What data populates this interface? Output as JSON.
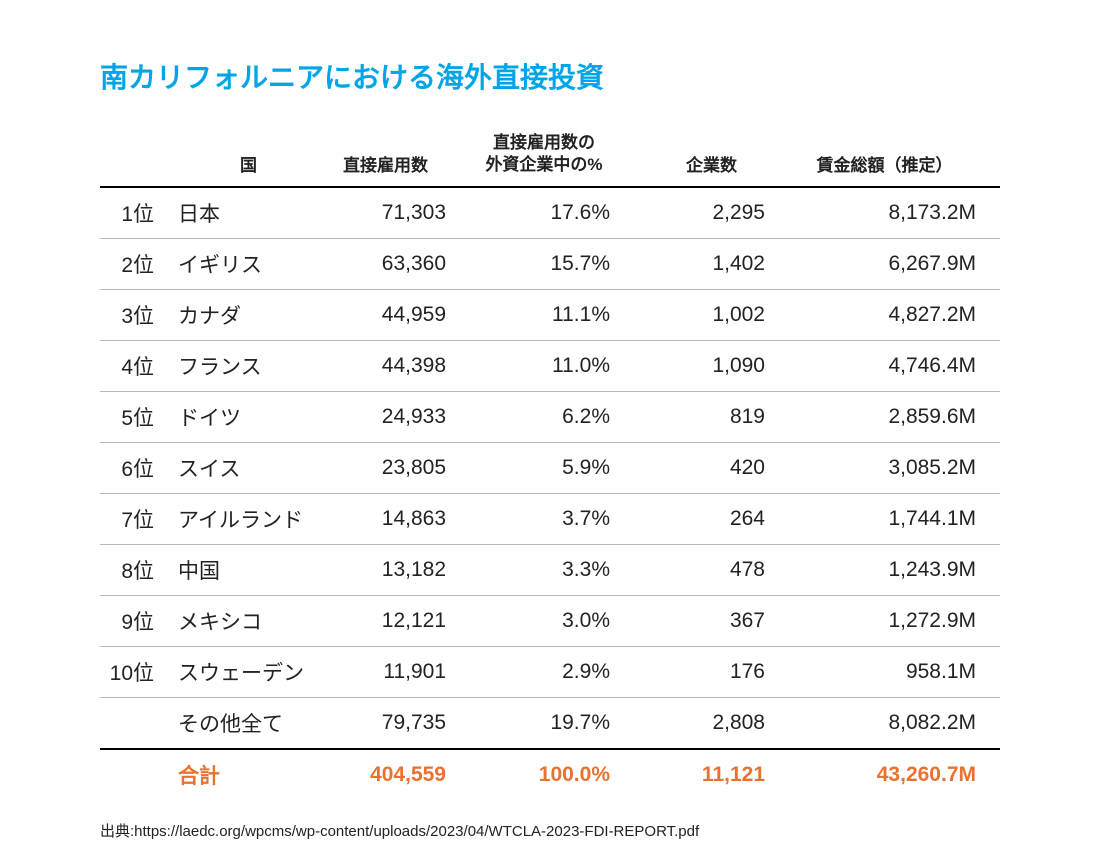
{
  "page": {
    "title": "南カリフォルニアにおける海外直接投資",
    "title_color": "#00a5e6",
    "source_label": "出典:https://laedc.org/wpcms/wp-content/uploads/2023/04/WTCLA-2023-FDI-REPORT.pdf"
  },
  "table": {
    "headers": {
      "rank": "",
      "country": "国",
      "employment": "直接雇用数",
      "percent_line1": "直接雇用数の",
      "percent_line2": "外資企業中の%",
      "companies": "企業数",
      "wages": "賃金総額（推定）"
    },
    "rows": [
      {
        "rank": "1位",
        "country": "日本",
        "employment": "71,303",
        "percent": "17.6%",
        "companies": "2,295",
        "wages": "8,173.2M"
      },
      {
        "rank": "2位",
        "country": "イギリス",
        "employment": "63,360",
        "percent": "15.7%",
        "companies": "1,402",
        "wages": "6,267.9M"
      },
      {
        "rank": "3位",
        "country": "カナダ",
        "employment": "44,959",
        "percent": "11.1%",
        "companies": "1,002",
        "wages": "4,827.2M"
      },
      {
        "rank": "4位",
        "country": "フランス",
        "employment": "44,398",
        "percent": "11.0%",
        "companies": "1,090",
        "wages": "4,746.4M"
      },
      {
        "rank": "5位",
        "country": "ドイツ",
        "employment": "24,933",
        "percent": "6.2%",
        "companies": "819",
        "wages": "2,859.6M"
      },
      {
        "rank": "6位",
        "country": "スイス",
        "employment": "23,805",
        "percent": "5.9%",
        "companies": "420",
        "wages": "3,085.2M"
      },
      {
        "rank": "7位",
        "country": "アイルランド",
        "employment": "14,863",
        "percent": "3.7%",
        "companies": "264",
        "wages": "1,744.1M"
      },
      {
        "rank": "8位",
        "country": "中国",
        "employment": "13,182",
        "percent": "3.3%",
        "companies": "478",
        "wages": "1,243.9M"
      },
      {
        "rank": "9位",
        "country": "メキシコ",
        "employment": "12,121",
        "percent": "3.0%",
        "companies": "367",
        "wages": "1,272.9M"
      },
      {
        "rank": "10位",
        "country": "スウェーデン",
        "employment": "11,901",
        "percent": "2.9%",
        "companies": "176",
        "wages": "958.1M"
      }
    ],
    "other_row": {
      "rank": "",
      "country": "その他全て",
      "employment": "79,735",
      "percent": "19.7%",
      "companies": "2,808",
      "wages": "8,082.2M"
    },
    "total_row": {
      "rank": "",
      "country": "合計",
      "employment": "404,559",
      "percent": "100.0%",
      "companies": "11,121",
      "wages": "43,260.7M"
    },
    "total_color": "#e8722f"
  },
  "style": {
    "text_color": "#222222",
    "header_border_color": "#000000",
    "row_border_color": "#b7b7b7",
    "background_color": "#ffffff",
    "title_fontsize": 28,
    "header_fontsize": 17,
    "cell_fontsize": 21,
    "source_fontsize": 15
  }
}
